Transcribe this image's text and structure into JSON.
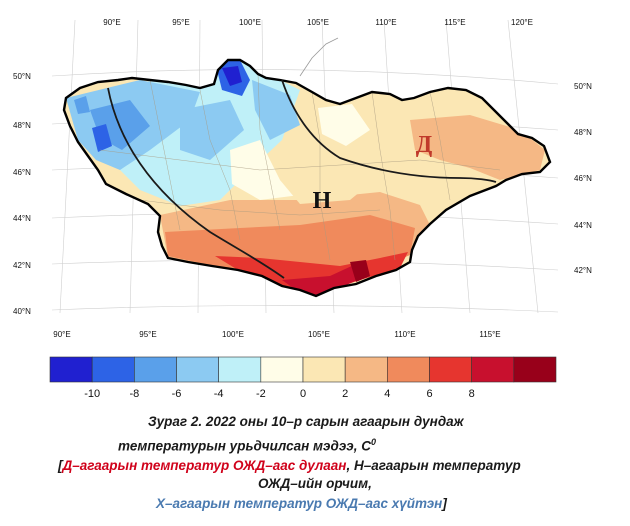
{
  "map": {
    "lon_ticks_top": [
      "90°E",
      "95°E",
      "100°E",
      "105°E",
      "110°E",
      "115°E",
      "120°E"
    ],
    "lon_ticks_bottom": [
      "90°E",
      "95°E",
      "100°E",
      "105°E",
      "110°E",
      "115°E"
    ],
    "lat_ticks_left": [
      "50°N",
      "48°N",
      "46°N",
      "44°N",
      "42°N",
      "40°N"
    ],
    "lat_ticks_right": [
      "50°N",
      "48°N",
      "46°N",
      "44°N",
      "42°N"
    ],
    "zone_labels": {
      "warm": "Д",
      "normal": "Н"
    },
    "colors": {
      "outline": "#000000",
      "zone_line": "#1a1a1a",
      "warm_label": "#c0392b",
      "normal_label": "#111111"
    }
  },
  "colorbar": {
    "colors": [
      "#2020d0",
      "#2d63e6",
      "#5aa0ea",
      "#8ccaf2",
      "#bff0f8",
      "#fffde8",
      "#fbe7b4",
      "#f5b885",
      "#f08a5c",
      "#e6352f",
      "#c8102e",
      "#98001a"
    ],
    "labels": [
      "-10",
      "-8",
      "-6",
      "-4",
      "-2",
      "0",
      "2",
      "4",
      "6",
      "8"
    ]
  },
  "caption": {
    "line1": "Зураг 2. 2022 оны 10–р сарын агаарын дундаж",
    "line2": "температурын урьдчилсан мэдээ, С",
    "line2_sup": "0",
    "line3_open": "[",
    "line3_red": "Д–агаарын температур ОЖД–аас дулаан",
    "line3_rest": ", Н–агаарын температур",
    "line4": "ОЖД–ийн орчим,",
    "line5_blue": "Х–агаарын температур ОЖД–аас хүйтэн",
    "line5_close": "]"
  }
}
